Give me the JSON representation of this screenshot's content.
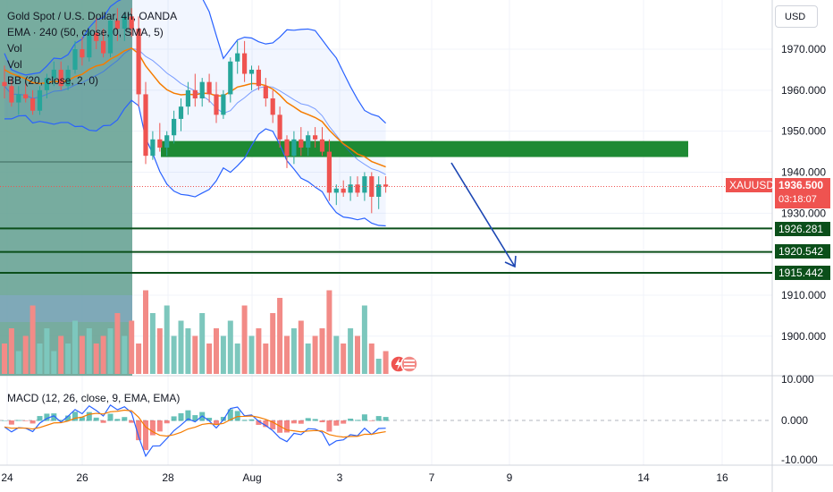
{
  "legend": {
    "symbol": "Gold Spot / U.S. Dollar, 4h, OANDA",
    "ema": "EMA · 240 (50, close, 0, SMA, 5)",
    "vol1": "Vol",
    "vol2": "Vol",
    "bb": "BB (20, close, 2, 0)"
  },
  "currency_button": "USD",
  "macd_label": "MACD (12, 26, close, 9, EMA, EMA)",
  "price_tag": {
    "symbol": "XAUUSD",
    "price": "1936.500",
    "countdown": "03:18:07"
  },
  "level_labels": [
    "1926.281",
    "1920.542",
    "1915.442"
  ],
  "colors": {
    "up": "#26a69a",
    "down": "#ef5350",
    "vol_up": "#7dc7bd",
    "vol_down": "#f28b87",
    "bb": "#2962ff",
    "ema": "#f57c00",
    "zone": "#1e8a34",
    "level": "#0b4f1a",
    "price_tag": "#ef5350",
    "arrow": "#1c46b3"
  },
  "chart_data": {
    "type": "candlestick",
    "title": "Gold Spot / U.S. Dollar, 4h, OANDA",
    "price_axis": {
      "ticks": [
        "1970.000",
        "1960.000",
        "1950.000",
        "1940.000",
        "1930.000",
        "1910.000",
        "1900.000"
      ],
      "range": [
        1891,
        1980
      ]
    },
    "x_ticks": [
      "24",
      "26",
      "28",
      "Aug",
      "3",
      "7",
      "9",
      "14",
      "16"
    ],
    "current_price": 1936.5,
    "horizontal_levels": [
      1926.281,
      1920.542,
      1915.442
    ],
    "resistance_zone": [
      1943.7,
      1947.6
    ],
    "projection": {
      "from": [
        10,
        1942
      ],
      "to": [
        16,
        1916.5
      ]
    },
    "candles": [
      [
        1962,
        1966,
        1958,
        1961
      ],
      [
        1961,
        1963,
        1956,
        1957
      ],
      [
        1957,
        1961,
        1954,
        1959
      ],
      [
        1959,
        1962,
        1957,
        1958
      ],
      [
        1958,
        1960,
        1954,
        1955
      ],
      [
        1955,
        1961,
        1954,
        1960
      ],
      [
        1960,
        1964,
        1958,
        1963
      ],
      [
        1963,
        1967,
        1961,
        1965
      ],
      [
        1965,
        1967,
        1960,
        1961
      ],
      [
        1961,
        1966,
        1960,
        1965
      ],
      [
        1965,
        1972,
        1964,
        1970
      ],
      [
        1970,
        1973,
        1966,
        1968
      ],
      [
        1968,
        1975,
        1967,
        1974
      ],
      [
        1974,
        1978,
        1970,
        1972
      ],
      [
        1972,
        1975,
        1968,
        1969
      ],
      [
        1969,
        1978,
        1968,
        1977
      ],
      [
        1977,
        1980,
        1972,
        1975
      ],
      [
        1975,
        1979,
        1972,
        1978
      ],
      [
        1978,
        1980,
        1973,
        1975
      ],
      [
        1975,
        1978,
        1956,
        1959
      ],
      [
        1959,
        1962,
        1942,
        1944
      ],
      [
        1944,
        1950,
        1943,
        1948
      ],
      [
        1948,
        1952,
        1945,
        1946
      ],
      [
        1946,
        1950,
        1944,
        1949
      ],
      [
        1949,
        1955,
        1947,
        1953
      ],
      [
        1953,
        1958,
        1950,
        1956
      ],
      [
        1956,
        1962,
        1954,
        1960
      ],
      [
        1960,
        1964,
        1956,
        1958
      ],
      [
        1958,
        1963,
        1956,
        1962
      ],
      [
        1962,
        1964,
        1957,
        1959
      ],
      [
        1959,
        1962,
        1952,
        1954
      ],
      [
        1954,
        1960,
        1953,
        1959
      ],
      [
        1959,
        1968,
        1957,
        1967
      ],
      [
        1967,
        1972,
        1964,
        1969
      ],
      [
        1969,
        1972,
        1962,
        1964
      ],
      [
        1964,
        1966,
        1960,
        1965
      ],
      [
        1965,
        1966,
        1960,
        1961
      ],
      [
        1961,
        1963,
        1956,
        1958
      ],
      [
        1958,
        1960,
        1952,
        1954
      ],
      [
        1954,
        1956,
        1946,
        1948
      ],
      [
        1948,
        1949,
        1941,
        1944
      ],
      [
        1944,
        1950,
        1942,
        1948
      ],
      [
        1948,
        1951,
        1944,
        1946
      ],
      [
        1946,
        1950,
        1944,
        1949
      ],
      [
        1949,
        1951,
        1946,
        1948
      ],
      [
        1948,
        1951,
        1944,
        1945
      ],
      [
        1945,
        1948,
        1933,
        1935
      ],
      [
        1935,
        1937,
        1932,
        1936
      ],
      [
        1936,
        1938,
        1934,
        1935
      ],
      [
        1935,
        1939,
        1933,
        1937
      ],
      [
        1937,
        1939,
        1934,
        1935
      ],
      [
        1935,
        1940,
        1933,
        1939
      ],
      [
        1939,
        1940,
        1930,
        1934
      ],
      [
        1934,
        1939,
        1931,
        1937
      ],
      [
        1937,
        1939,
        1935,
        1936.5
      ]
    ],
    "volume": [
      4,
      6,
      3,
      5,
      9,
      4,
      6,
      3,
      5,
      4,
      7,
      5,
      6,
      4,
      5,
      6,
      8,
      5,
      7,
      4,
      11,
      8,
      6,
      9,
      5,
      7,
      6,
      5,
      8,
      4,
      6,
      5,
      7,
      4,
      9,
      5,
      6,
      4,
      8,
      10,
      5,
      6,
      7,
      4,
      5,
      6,
      11,
      5,
      4,
      6,
      5,
      9,
      4,
      2,
      3
    ],
    "macd": {
      "label": "MACD (12, 26, close, 9, EMA, EMA)",
      "ticks": [
        "10.000",
        "0.000",
        "-10.000"
      ],
      "range": [
        -11,
        11
      ]
    }
  }
}
